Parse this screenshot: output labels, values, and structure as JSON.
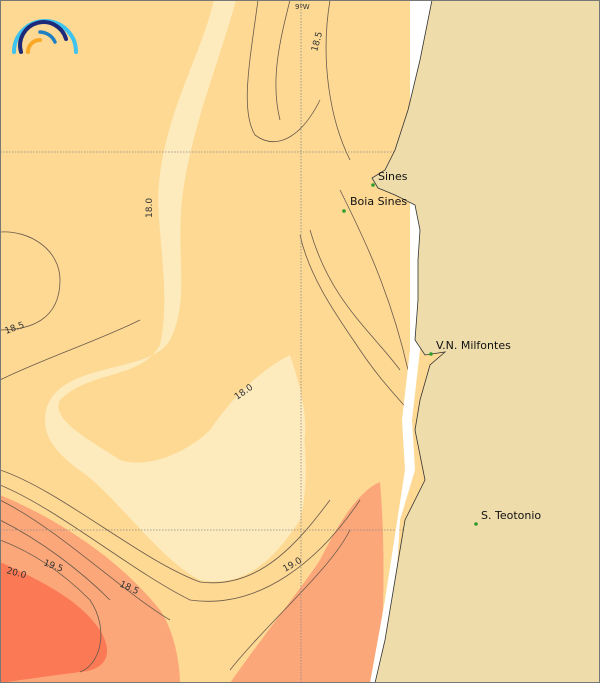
{
  "map": {
    "longitude_label": "9ºW",
    "contour_labels": [
      "18.5",
      "18.0",
      "18.5",
      "18.0",
      "19.5",
      "20.0",
      "18.5",
      "19.0"
    ],
    "places": [
      {
        "name": "Sines"
      },
      {
        "name": "Boia Sines"
      },
      {
        "name": "V.N. Milfontes"
      },
      {
        "name": "S. Teotonio"
      }
    ],
    "logo_icon": "rainbow-arc-logo-icon",
    "colors": {
      "sea_18_18_5": "#fdd994",
      "sea_below_18": "#fdebbd",
      "sea_19_19_5": "#fca77a",
      "sea_above_20": "#fb7a55",
      "land": "#eedcab",
      "contour": "#6b5a4a",
      "place_marker": "#2a9d2a"
    }
  }
}
